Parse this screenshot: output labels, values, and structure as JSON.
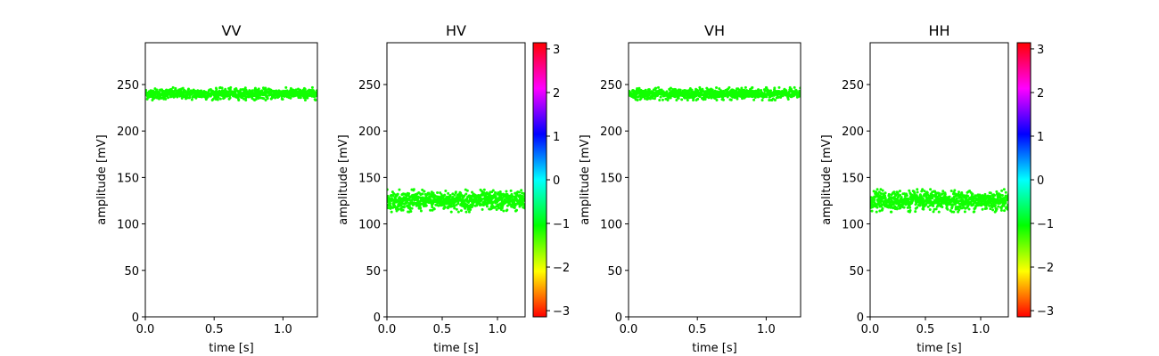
{
  "chart_data": [
    {
      "type": "scatter",
      "title": "VV",
      "xlabel": "time [s]",
      "ylabel": "amplitude [mV]",
      "xlim": [
        0,
        1.25
      ],
      "ylim": [
        0,
        295
      ],
      "xticks": [
        "0.0",
        "0.5",
        "1.0"
      ],
      "xtick_values": [
        0,
        0.5,
        1.0
      ],
      "yticks": [
        "0",
        "50",
        "100",
        "150",
        "200",
        "250"
      ],
      "ytick_values": [
        0,
        50,
        100,
        150,
        200,
        250
      ],
      "series": [
        {
          "x_range": [
            0,
            1.25
          ],
          "mean": 240,
          "spread": 5,
          "color": "#11ff00",
          "phase_value": -0.9
        }
      ],
      "colorbar": false
    },
    {
      "type": "scatter",
      "title": "HV",
      "xlabel": "time [s]",
      "ylabel": "amplitude [mV]",
      "xlim": [
        0,
        1.25
      ],
      "ylim": [
        0,
        295
      ],
      "xticks": [
        "0.0",
        "0.5",
        "1.0"
      ],
      "xtick_values": [
        0,
        0.5,
        1.0
      ],
      "yticks": [
        "0",
        "50",
        "100",
        "150",
        "200",
        "250"
      ],
      "ytick_values": [
        0,
        50,
        100,
        150,
        200,
        250
      ],
      "series": [
        {
          "x_range": [
            0,
            1.25
          ],
          "mean": 125,
          "spread": 9,
          "color": "#11ff00",
          "phase_value": -0.9
        }
      ],
      "colorbar": true,
      "colorbar_range": [
        -3.14159,
        3.14159
      ],
      "colorbar_ticks": [
        "3",
        "2",
        "1",
        "0",
        "−1",
        "−2",
        "−3"
      ],
      "colorbar_tick_values": [
        3,
        2,
        1,
        0,
        -1,
        -2,
        -3
      ],
      "colormap": "hsv"
    },
    {
      "type": "scatter",
      "title": "VH",
      "xlabel": "time [s]",
      "ylabel": "amplitude [mV]",
      "xlim": [
        0,
        1.25
      ],
      "ylim": [
        0,
        295
      ],
      "xticks": [
        "0.0",
        "0.5",
        "1.0"
      ],
      "xtick_values": [
        0,
        0.5,
        1.0
      ],
      "yticks": [
        "0",
        "50",
        "100",
        "150",
        "200",
        "250"
      ],
      "ytick_values": [
        0,
        50,
        100,
        150,
        200,
        250
      ],
      "series": [
        {
          "x_range": [
            0,
            1.25
          ],
          "mean": 240,
          "spread": 5,
          "color": "#11ff00",
          "phase_value": -0.9
        }
      ],
      "colorbar": false
    },
    {
      "type": "scatter",
      "title": "HH",
      "xlabel": "time [s]",
      "ylabel": "amplitude [mV]",
      "xlim": [
        0,
        1.25
      ],
      "ylim": [
        0,
        295
      ],
      "xticks": [
        "0.0",
        "0.5",
        "1.0"
      ],
      "xtick_values": [
        0,
        0.5,
        1.0
      ],
      "yticks": [
        "0",
        "50",
        "100",
        "150",
        "200",
        "250"
      ],
      "ytick_values": [
        0,
        50,
        100,
        150,
        200,
        250
      ],
      "series": [
        {
          "x_range": [
            0,
            1.25
          ],
          "mean": 125,
          "spread": 9,
          "color": "#11ff00",
          "phase_value": -0.9
        }
      ],
      "colorbar": true,
      "colorbar_range": [
        -3.14159,
        3.14159
      ],
      "colorbar_ticks": [
        "3",
        "2",
        "1",
        "0",
        "−1",
        "−2",
        "−3"
      ],
      "colorbar_tick_values": [
        3,
        2,
        1,
        0,
        -1,
        -2,
        -3
      ],
      "colormap": "hsv"
    }
  ]
}
